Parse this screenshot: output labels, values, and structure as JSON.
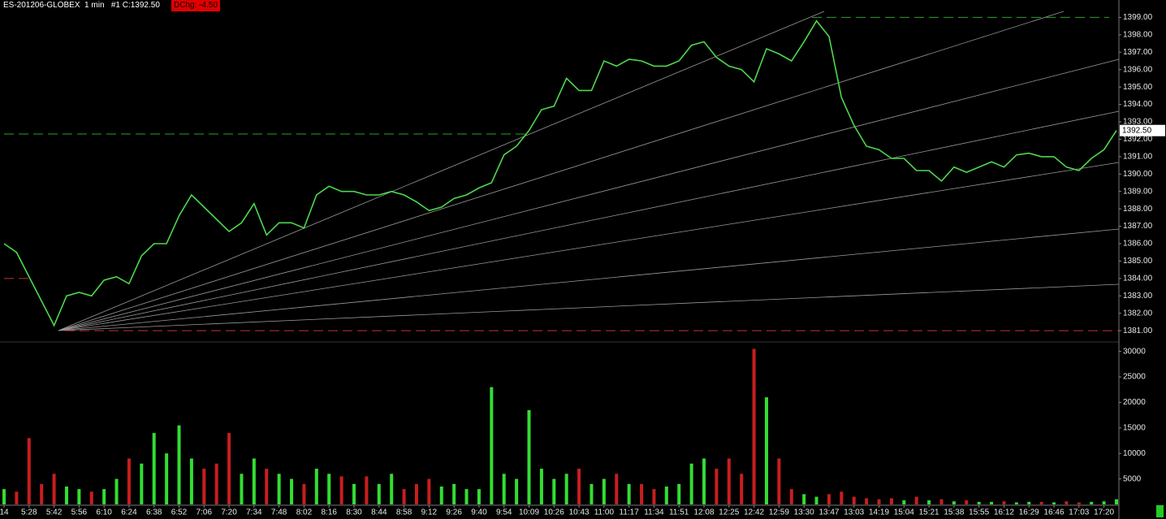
{
  "chart_data": [
    {
      "type": "line",
      "title": "ES-201206-GLOBEX  1 min   #1 C:1392.50",
      "change_label": "DChg: -4.50",
      "last": {
        "value": 1392.5,
        "label": "1392.50"
      },
      "color": "#4cd94c",
      "values": [
        1386.0,
        1385.5,
        1384.1,
        1382.7,
        1381.3,
        1383.0,
        1383.2,
        1383.0,
        1383.9,
        1384.1,
        1383.7,
        1385.3,
        1386.0,
        1386.0,
        1387.6,
        1388.8,
        1388.1,
        1387.4,
        1386.7,
        1387.2,
        1388.3,
        1386.5,
        1387.2,
        1387.2,
        1386.9,
        1388.8,
        1389.3,
        1389.0,
        1389.0,
        1388.8,
        1388.8,
        1389.0,
        1388.8,
        1388.4,
        1387.9,
        1388.1,
        1388.6,
        1388.8,
        1389.2,
        1389.5,
        1391.1,
        1391.6,
        1392.5,
        1393.7,
        1393.9,
        1395.5,
        1394.8,
        1394.8,
        1396.5,
        1396.2,
        1396.6,
        1396.5,
        1396.2,
        1396.2,
        1396.5,
        1397.4,
        1397.6,
        1396.7,
        1396.2,
        1396.0,
        1395.3,
        1397.2,
        1396.9,
        1396.5,
        1397.6,
        1398.8,
        1397.9,
        1394.4,
        1392.8,
        1391.6,
        1391.4,
        1390.9,
        1390.9,
        1390.2,
        1390.2,
        1389.6,
        1390.4,
        1390.1,
        1390.4,
        1390.7,
        1390.4,
        1391.1,
        1391.2,
        1391.0,
        1391.0,
        1390.4,
        1390.2,
        1390.9,
        1391.4,
        1392.5
      ],
      "hlines": [
        {
          "value": 1392.3,
          "color": "#2e9e2e"
        },
        {
          "value": 1399,
          "color": "#2e9e2e"
        },
        {
          "value": 1381,
          "color": "#c83030"
        },
        {
          "value": 1384,
          "color": "#c83030"
        }
      ],
      "ylim": [
        1380.4,
        1400
      ],
      "yticks": [
        {
          "value": 1381,
          "label": "1381.00"
        },
        {
          "value": 1382,
          "label": "1382.00"
        },
        {
          "value": 1383,
          "label": "1383.00"
        },
        {
          "value": 1384,
          "label": "1384.00"
        },
        {
          "value": 1385,
          "label": "1385.00"
        },
        {
          "value": 1386,
          "label": "1386.00"
        },
        {
          "value": 1387,
          "label": "1387.00"
        },
        {
          "value": 1388,
          "label": "1388.00"
        },
        {
          "value": 1389,
          "label": "1389.00"
        },
        {
          "value": 1390,
          "label": "1390.00"
        },
        {
          "value": 1391,
          "label": "1391.00"
        },
        {
          "value": 1392,
          "label": "1392.00"
        },
        {
          "value": 1393,
          "label": "1393.00"
        },
        {
          "value": 1394,
          "label": "1394.00"
        },
        {
          "value": 1395,
          "label": "1395.00"
        },
        {
          "value": 1396,
          "label": "1396.00"
        },
        {
          "value": 1397,
          "label": "1397.00"
        },
        {
          "value": 1398,
          "label": "1398.00"
        },
        {
          "value": 1399,
          "label": "1399.00"
        }
      ]
    },
    {
      "type": "bar",
      "up_color": "#33dd33",
      "down_color": "#c81e1e",
      "categories": [
        "14",
        null,
        "5:28",
        null,
        "5:42",
        null,
        "5:56",
        null,
        "6:10",
        null,
        "6:24",
        null,
        "6:38",
        null,
        "6:52",
        null,
        "7:06",
        null,
        "7:20",
        null,
        "7:34",
        null,
        "7:48",
        null,
        "8:02",
        null,
        "8:16",
        null,
        "8:30",
        null,
        "8:44",
        null,
        "8:58",
        null,
        "9:12",
        null,
        "9:26",
        null,
        "9:40",
        null,
        "9:54",
        null,
        "10:09",
        null,
        "10:26",
        null,
        "10:43",
        null,
        "11:00",
        null,
        "11:17",
        null,
        "11:34",
        null,
        "11:51",
        null,
        "12:08",
        null,
        "12:25",
        null,
        "12:42",
        null,
        "12:59",
        null,
        "13:30",
        null,
        "13:47",
        null,
        "13:03",
        null,
        "14:19",
        null,
        "15:04",
        null,
        "15:21",
        null,
        "15:38",
        null,
        "15:55",
        null,
        "16:12",
        null,
        "16:29",
        null,
        "16:46",
        null,
        "17:03",
        null,
        "17:20",
        null
      ],
      "values": [
        3000,
        2500,
        13000,
        4000,
        6000,
        3500,
        3000,
        2500,
        3000,
        5000,
        9000,
        8000,
        14000,
        10000,
        15500,
        9000,
        7000,
        8000,
        14000,
        6000,
        9000,
        7000,
        6000,
        5000,
        4000,
        7000,
        6000,
        5500,
        4000,
        5500,
        4000,
        6000,
        3000,
        4000,
        5000,
        3500,
        4000,
        3000,
        3000,
        23000,
        6000,
        5000,
        18500,
        7000,
        5000,
        6000,
        7000,
        4000,
        5000,
        6000,
        4000,
        4000,
        3000,
        3500,
        4000,
        8000,
        9000,
        7000,
        9000,
        6000,
        30500,
        21000,
        9000,
        3000,
        2000,
        1500,
        2000,
        2500,
        1500,
        1200,
        1000,
        1200,
        800,
        1500,
        800,
        1000,
        600,
        800,
        500,
        500,
        600,
        400,
        500,
        500,
        400,
        600,
        400,
        500,
        600,
        1000
      ],
      "ylim": [
        0,
        31700
      ],
      "yticks": [
        5000,
        10000,
        15000,
        20000,
        25000,
        30000
      ]
    }
  ]
}
